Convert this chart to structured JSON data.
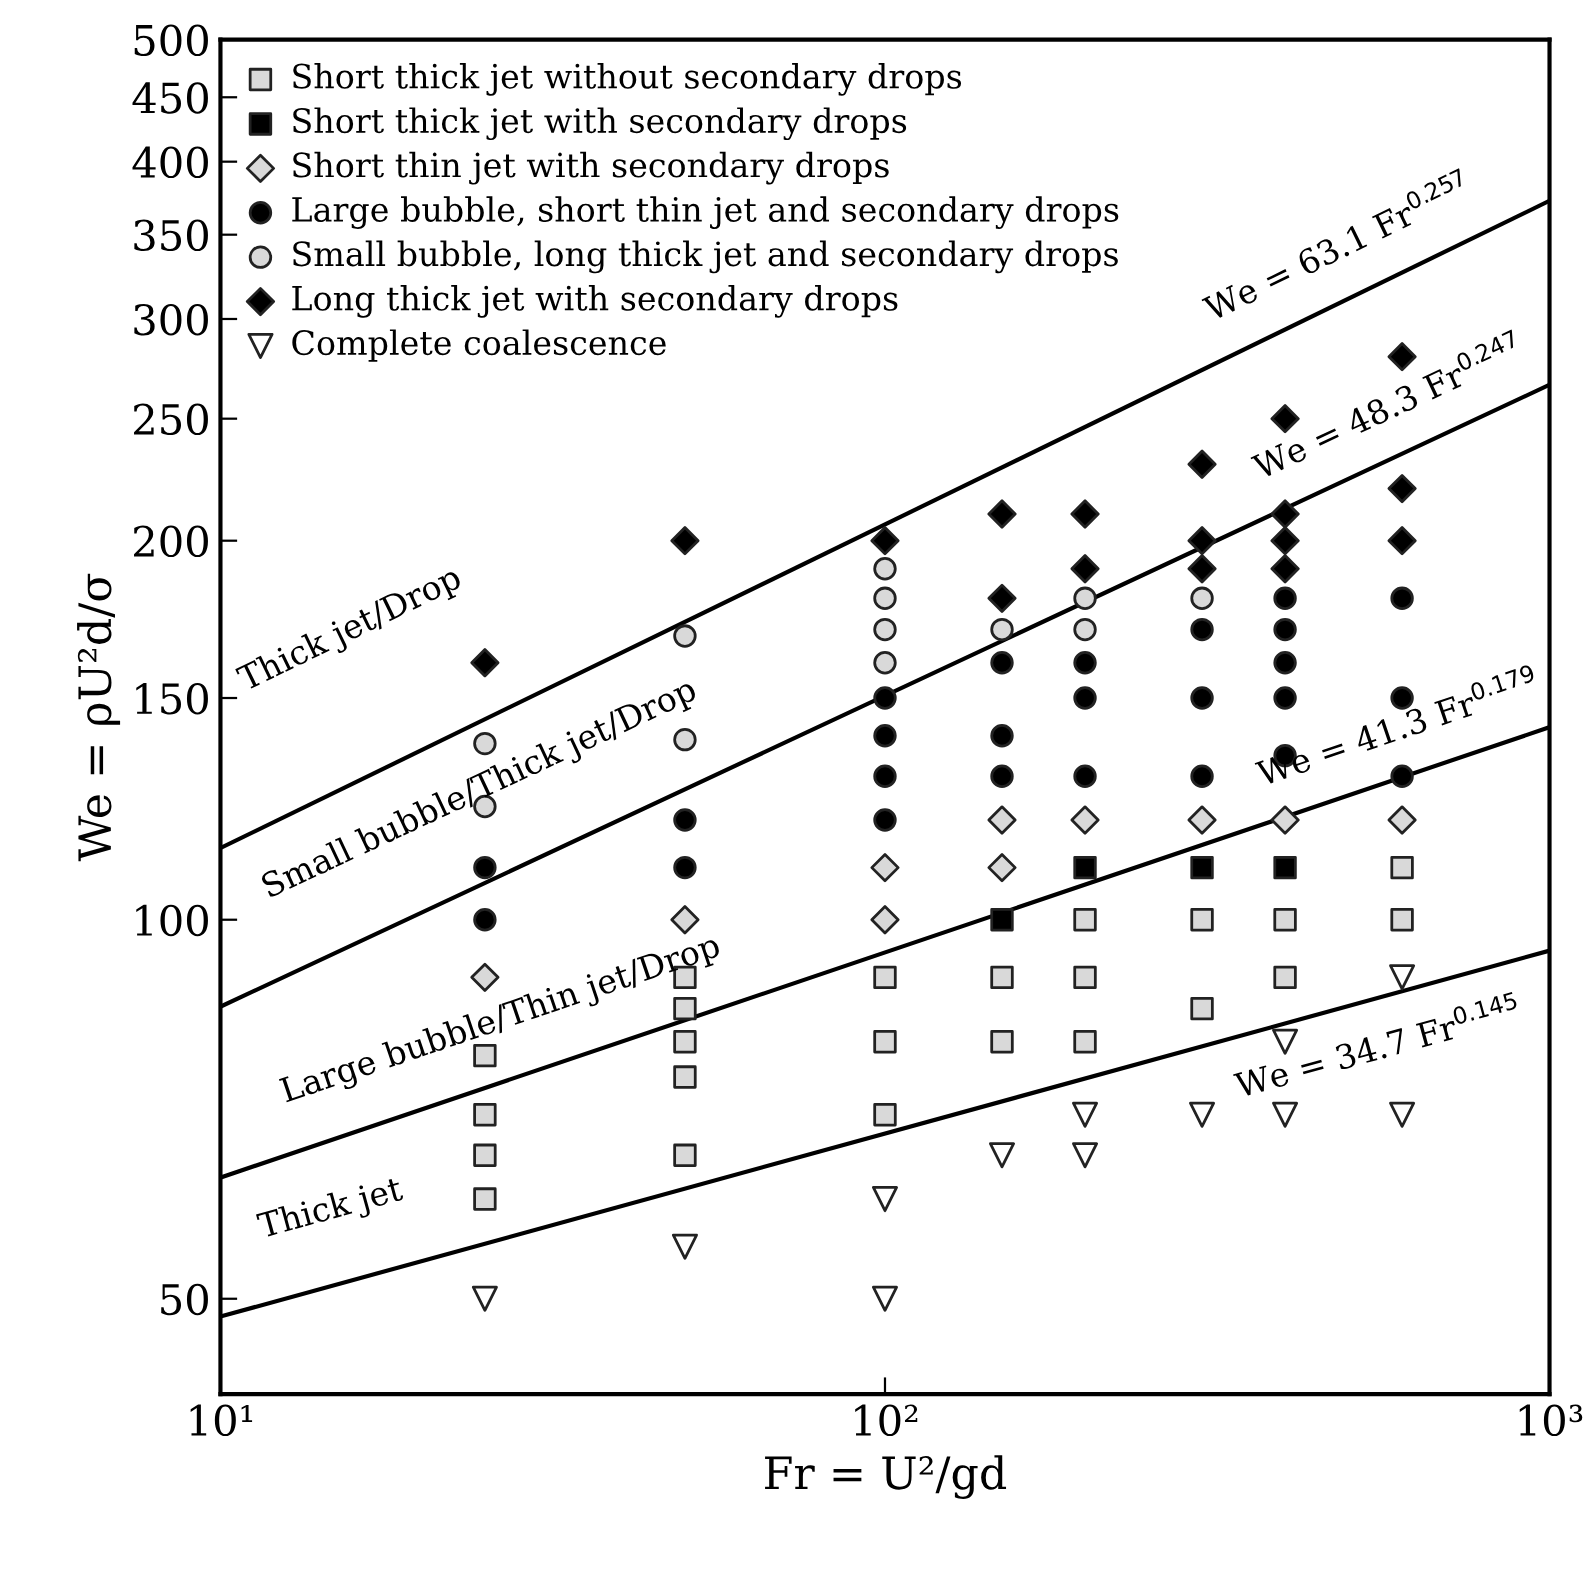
{
  "chart_data": {
    "type": "scatter",
    "xlabel": "Fr = U²/gd",
    "ylabel": "We = ρU²d/σ",
    "log": "xy",
    "xlim": [
      10,
      1000
    ],
    "xticks": [
      {
        "value": 10,
        "label": "10¹"
      },
      {
        "value": 100,
        "label": "10²"
      },
      {
        "value": 1000,
        "label": "10³"
      }
    ],
    "ylim": [
      42,
      500
    ],
    "yticks": [
      50,
      100,
      150,
      200,
      250,
      300,
      350,
      400,
      450,
      500
    ],
    "grid": false,
    "legend": "top left",
    "series": [
      {
        "name": "Short thick jet without secondary drops",
        "color": "#d9d9d9",
        "marker": "square",
        "x": [
          25,
          25,
          25,
          25,
          50,
          50,
          50,
          50,
          50,
          100,
          100,
          100,
          150,
          150,
          200,
          200,
          200,
          300,
          300,
          400,
          400,
          600,
          600
        ],
        "values": [
          78,
          70,
          65,
          60,
          90,
          85,
          80,
          75,
          65,
          90,
          80,
          70,
          90,
          80,
          100,
          90,
          80,
          100,
          85,
          100,
          90,
          110,
          100
        ]
      },
      {
        "name": "Short thick jet with secondary drops",
        "color": "#000000",
        "marker": "square",
        "x": [
          150,
          200,
          300,
          400
        ],
        "values": [
          100,
          110,
          110,
          110
        ]
      },
      {
        "name": "Short thin jet with secondary drops",
        "color": "#d9d9d9",
        "marker": "diamond",
        "x": [
          25,
          50,
          100,
          100,
          150,
          150,
          200,
          300,
          400,
          600
        ],
        "values": [
          90,
          100,
          110,
          100,
          120,
          110,
          120,
          120,
          120,
          120
        ]
      },
      {
        "name": "Large bubble, short thin jet and secondary drops",
        "color": "#000000",
        "marker": "circle",
        "x": [
          25,
          25,
          50,
          50,
          100,
          100,
          100,
          100,
          150,
          150,
          150,
          200,
          200,
          200,
          300,
          300,
          300,
          400,
          400,
          400,
          400,
          400,
          600,
          600,
          600
        ],
        "values": [
          110,
          100,
          120,
          110,
          150,
          140,
          130,
          120,
          160,
          140,
          130,
          160,
          150,
          130,
          170,
          150,
          130,
          180,
          170,
          160,
          150,
          135,
          180,
          150,
          130
        ]
      },
      {
        "name": "Small bubble, long thick jet and secondary drops",
        "color": "#d9d9d9",
        "marker": "circle",
        "x": [
          25,
          25,
          50,
          50,
          100,
          100,
          100,
          100,
          150,
          200,
          200,
          300
        ],
        "values": [
          138,
          123,
          168,
          139,
          190,
          180,
          170,
          160,
          170,
          180,
          170,
          180
        ]
      },
      {
        "name": "Long thick jet with secondary drops",
        "color": "#000000",
        "marker": "diamond",
        "x": [
          25,
          50,
          100,
          150,
          150,
          200,
          200,
          300,
          300,
          300,
          400,
          400,
          400,
          400,
          600,
          600,
          600
        ],
        "values": [
          160,
          200,
          200,
          210,
          180,
          210,
          190,
          230,
          200,
          190,
          250,
          210,
          200,
          190,
          280,
          220,
          200
        ]
      },
      {
        "name": "Complete coalescence",
        "color": "#ffffff",
        "marker": "triangle",
        "x": [
          25,
          50,
          100,
          100,
          150,
          200,
          200,
          300,
          400,
          400,
          600,
          600
        ],
        "values": [
          50,
          55,
          60,
          50,
          65,
          70,
          65,
          70,
          80,
          70,
          90,
          70
        ]
      },
      {
        "type": "line",
        "color": "#000000",
        "marker": "none",
        "x": [
          10,
          1000
        ],
        "values": [
          114.0,
          372.4
        ]
      },
      {
        "type": "line",
        "color": "#000000",
        "marker": "none",
        "x": [
          10,
          1000
        ],
        "values": [
          85.3,
          266.0
        ]
      },
      {
        "type": "line",
        "color": "#000000",
        "marker": "none",
        "x": [
          10,
          1000
        ],
        "values": [
          62.4,
          142.2
        ]
      },
      {
        "type": "line",
        "color": "#000000",
        "marker": "none",
        "x": [
          10,
          1000
        ],
        "values": [
          48.4,
          94.5
        ]
      }
    ],
    "annotations": [
      "Thick jet/Drop",
      "Small bubble/Thick jet/Drop",
      "Large bubble/Thin jet/Drop",
      "Thick jet",
      "We = 63.1 Fr$^{0.257}$",
      "We = 48.3 Fr$^{0.247}$",
      "We = 41.3 Fr$^{0.179}$",
      "We = 34.7 Fr$^{0.145}$"
    ]
  }
}
